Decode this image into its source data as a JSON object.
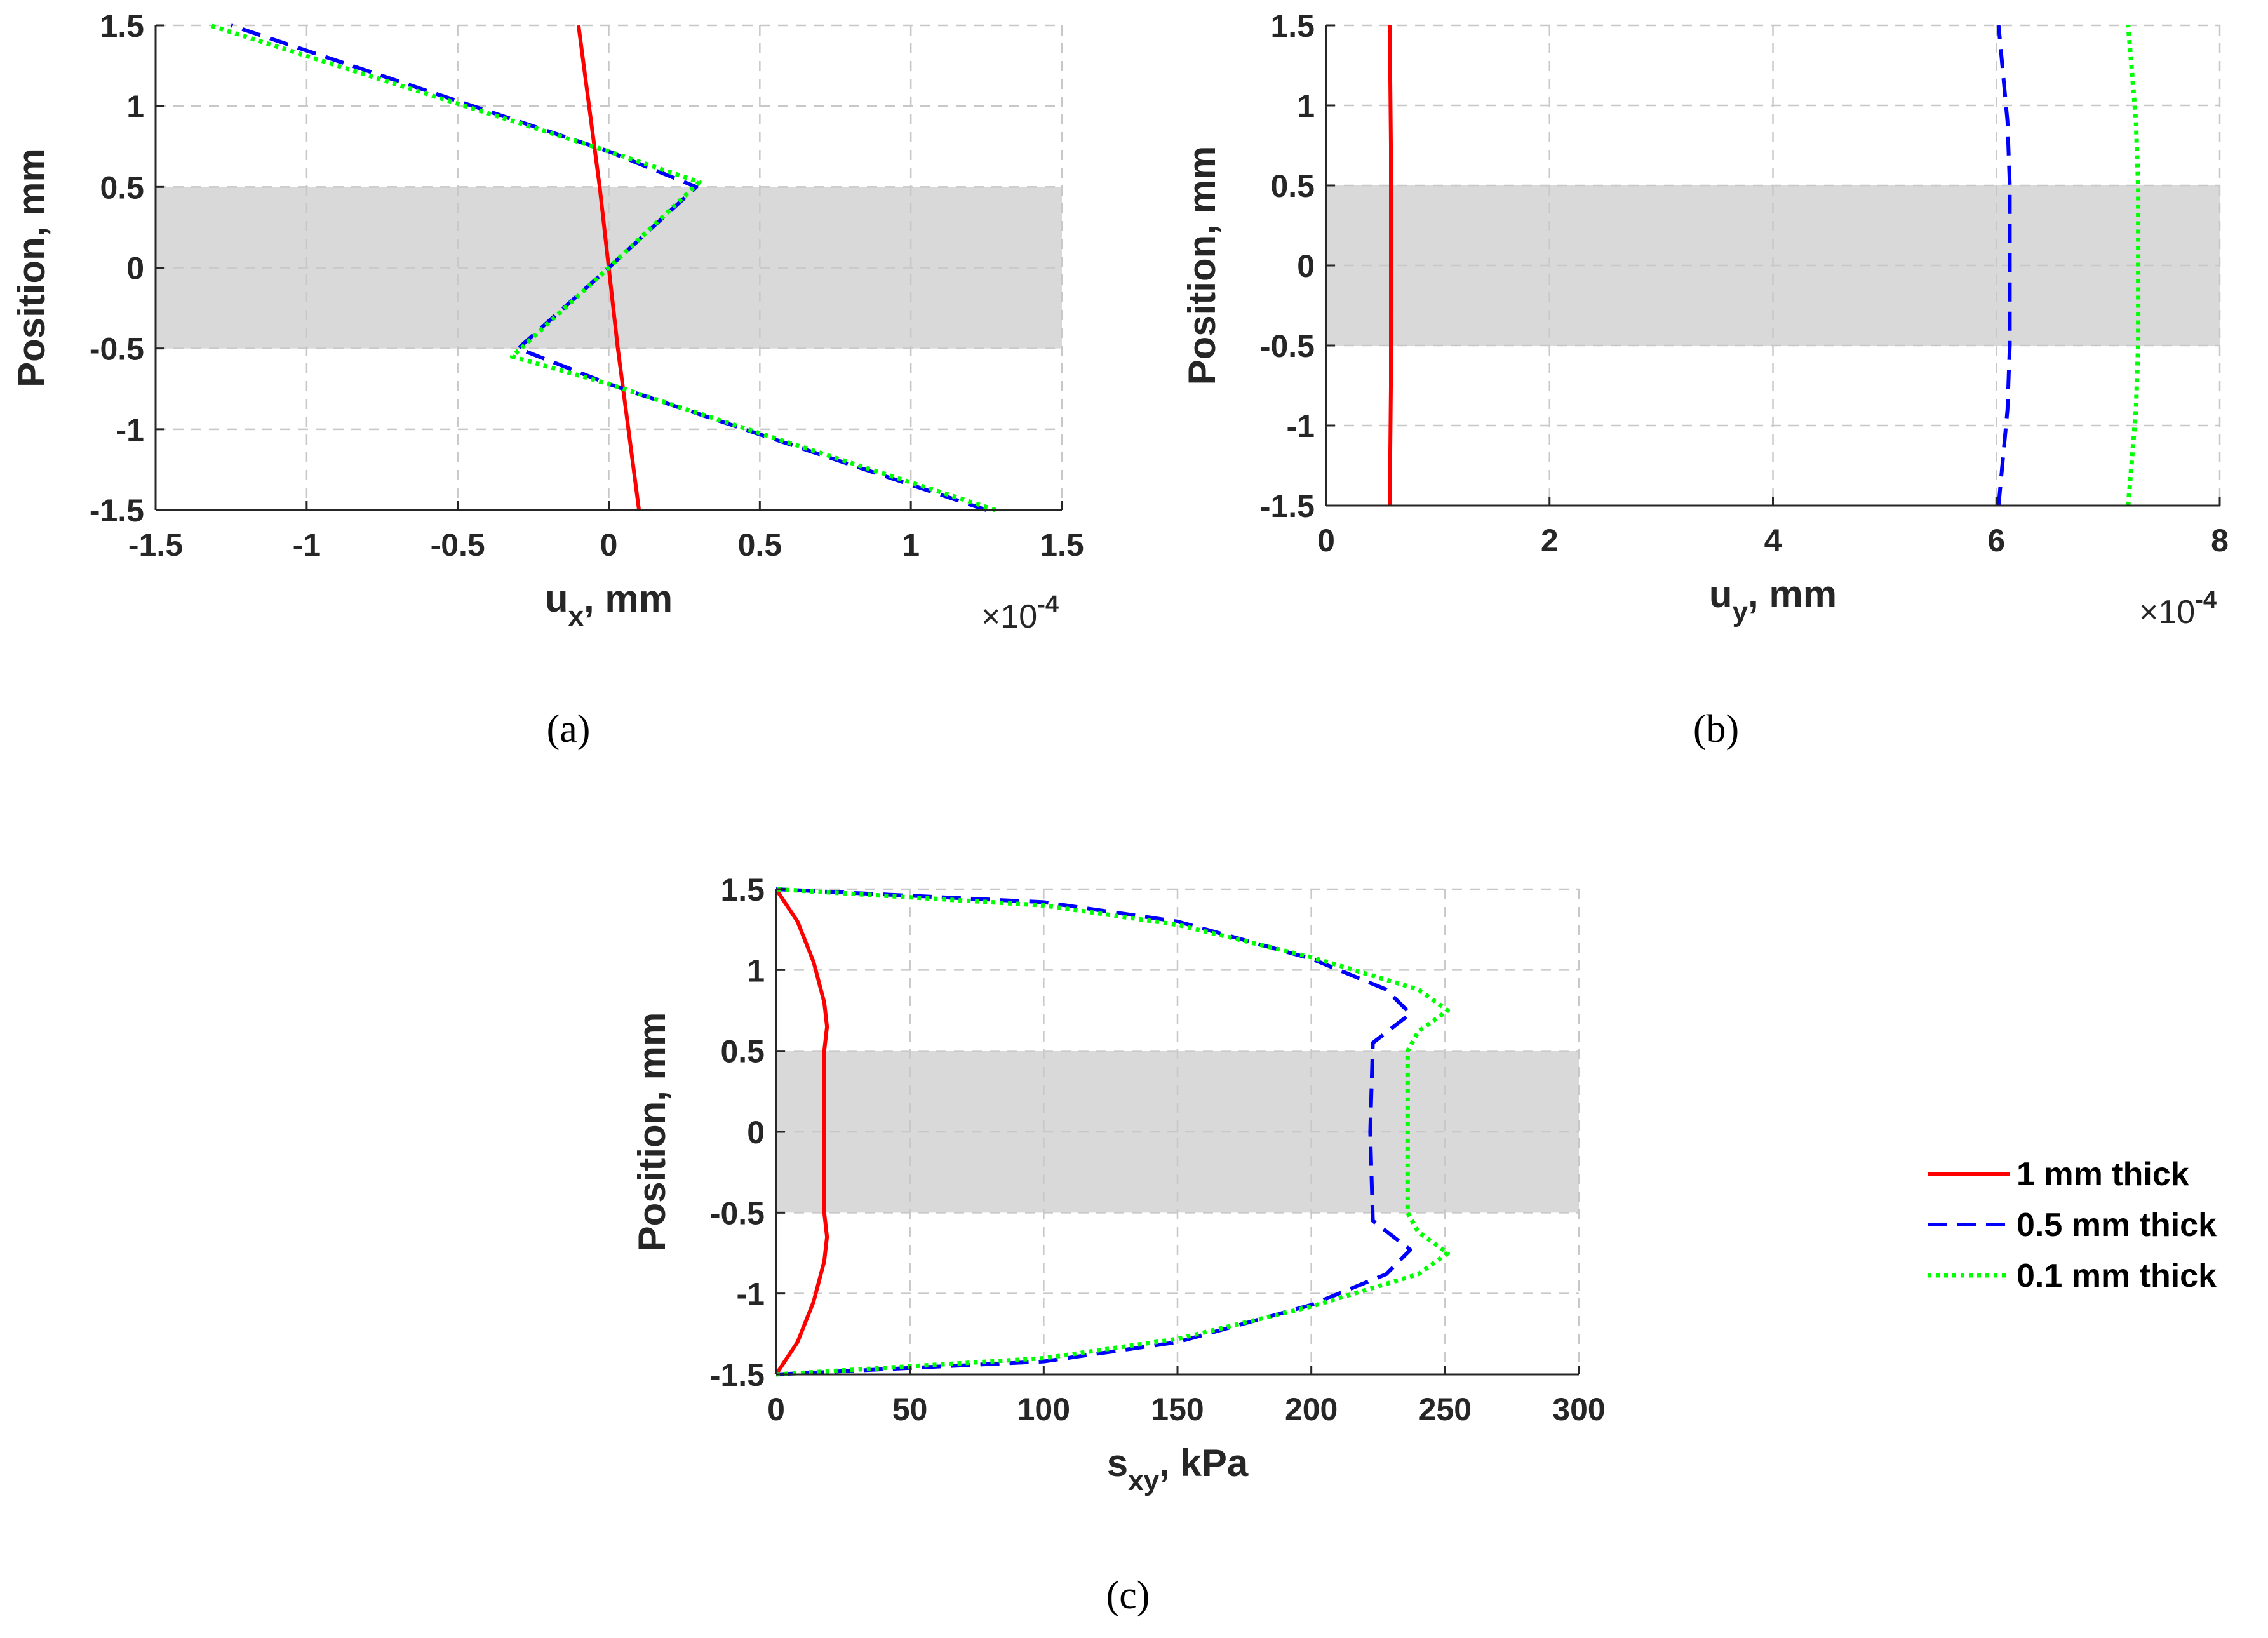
{
  "colors": {
    "series_1mm": "#ff0000",
    "series_05mm": "#0000ff",
    "series_01mm": "#00ff00",
    "band": "#d9d9d9"
  },
  "legend": {
    "entries": [
      "1 mm thick",
      "0.5 mm thick",
      "0.1 mm thick"
    ]
  },
  "chart_data": [
    {
      "id": "a",
      "type": "line",
      "caption": "(a)",
      "xlabel_main": "u",
      "xlabel_sub": "x",
      "xlabel_rest": ", mm",
      "ylabel": "Position, mm",
      "multiplier_text": "×10",
      "multiplier_exp": "-4",
      "xlim": [
        -1.5,
        1.5
      ],
      "ylim": [
        -1.5,
        1.5
      ],
      "xticks": [
        -1.5,
        -1,
        -0.5,
        0,
        0.5,
        1,
        1.5
      ],
      "xtick_labels": [
        "-1.5",
        "-1",
        "-0.5",
        "0",
        "0.5",
        "1",
        "1.5"
      ],
      "yticks": [
        -1.5,
        -1,
        -0.5,
        0,
        0.5,
        1,
        1.5
      ],
      "ytick_labels": [
        "-1.5",
        "-1",
        "-0.5",
        "0",
        "0.5",
        "1",
        "1.5"
      ],
      "shaded_band_y": [
        -0.5,
        0.5
      ],
      "series": [
        {
          "name": "1 mm thick",
          "style": "solid",
          "x": [
            0.1,
            0.03,
            0,
            -0.03,
            -0.1
          ],
          "y": [
            -1.5,
            -0.5,
            0,
            0.5,
            1.5
          ]
        },
        {
          "name": "0.5 mm thick",
          "style": "dashed",
          "x": [
            1.25,
            0,
            -0.3,
            0,
            0.29,
            0,
            -1.25
          ],
          "y": [
            -1.5,
            -0.72,
            -0.5,
            0,
            0.5,
            0.72,
            1.5
          ]
        },
        {
          "name": "0.1 mm thick",
          "style": "dotted",
          "x": [
            1.28,
            0,
            -0.32,
            0,
            0.3,
            0,
            -1.32
          ],
          "y": [
            -1.5,
            -0.72,
            -0.55,
            0,
            0.53,
            0.72,
            1.5
          ]
        }
      ]
    },
    {
      "id": "b",
      "type": "line",
      "caption": "(b)",
      "xlabel_main": "u",
      "xlabel_sub": "y",
      "xlabel_rest": ", mm",
      "ylabel": "Position, mm",
      "multiplier_text": "×10",
      "multiplier_exp": "-4",
      "xlim": [
        0,
        8
      ],
      "ylim": [
        -1.5,
        1.5
      ],
      "xticks": [
        0,
        2,
        4,
        6,
        8
      ],
      "xtick_labels": [
        "0",
        "2",
        "4",
        "6",
        "8"
      ],
      "yticks": [
        -1.5,
        -1,
        -0.5,
        0,
        0.5,
        1,
        1.5
      ],
      "ytick_labels": [
        "-1.5",
        "-1",
        "-0.5",
        "0",
        "0.5",
        "1",
        "1.5"
      ],
      "shaded_band_y": [
        -0.5,
        0.5
      ],
      "series": [
        {
          "name": "1 mm thick",
          "style": "solid",
          "x": [
            0.57,
            0.58,
            0.58,
            0.58,
            0.57
          ],
          "y": [
            -1.5,
            -0.75,
            0,
            0.75,
            1.5
          ]
        },
        {
          "name": "0.5 mm thick",
          "style": "dashed",
          "x": [
            6.02,
            6.1,
            6.12,
            6.12,
            6.12,
            6.1,
            6.02
          ],
          "y": [
            -1.5,
            -0.9,
            -0.5,
            0,
            0.5,
            0.9,
            1.5
          ]
        },
        {
          "name": "0.1 mm thick",
          "style": "dotted",
          "x": [
            7.18,
            7.25,
            7.27,
            7.27,
            7.27,
            7.25,
            7.18
          ],
          "y": [
            -1.5,
            -0.9,
            -0.5,
            0,
            0.5,
            0.9,
            1.5
          ]
        }
      ]
    },
    {
      "id": "c",
      "type": "line",
      "caption": "(c)",
      "xlabel_main": "s",
      "xlabel_sub": "xy",
      "xlabel_rest": ", kPa",
      "ylabel": "Position, mm",
      "xlim": [
        0,
        300
      ],
      "ylim": [
        -1.5,
        1.5
      ],
      "xticks": [
        0,
        50,
        100,
        150,
        200,
        250,
        300
      ],
      "xtick_labels": [
        "0",
        "50",
        "100",
        "150",
        "200",
        "250",
        "300"
      ],
      "yticks": [
        -1.5,
        -1,
        -0.5,
        0,
        0.5,
        1,
        1.5
      ],
      "ytick_labels": [
        "-1.5",
        "-1",
        "-0.5",
        "0",
        "0.5",
        "1",
        "1.5"
      ],
      "shaded_band_y": [
        -0.5,
        0.5
      ],
      "series": [
        {
          "name": "1 mm thick",
          "style": "solid",
          "x": [
            0,
            8,
            14,
            18,
            19,
            18,
            18,
            18,
            19,
            18,
            14,
            8,
            0
          ],
          "y": [
            -1.5,
            -1.3,
            -1.05,
            -0.8,
            -0.65,
            -0.5,
            0,
            0.5,
            0.65,
            0.8,
            1.05,
            1.3,
            1.5
          ]
        },
        {
          "name": "0.5 mm thick",
          "style": "dashed",
          "x": [
            0,
            100,
            150,
            200,
            228,
            237,
            223,
            222,
            223,
            237,
            228,
            200,
            150,
            100,
            0
          ],
          "y": [
            -1.5,
            -1.42,
            -1.3,
            -1.07,
            -0.88,
            -0.73,
            -0.55,
            0,
            0.55,
            0.73,
            0.88,
            1.07,
            1.3,
            1.42,
            1.5
          ]
        },
        {
          "name": "0.1 mm thick",
          "style": "dotted",
          "x": [
            0,
            100,
            150,
            200,
            240,
            251,
            240,
            236,
            236,
            236,
            240,
            251,
            240,
            200,
            150,
            100,
            0
          ],
          "y": [
            -1.5,
            -1.4,
            -1.28,
            -1.08,
            -0.88,
            -0.75,
            -0.62,
            -0.5,
            0,
            0.5,
            0.62,
            0.75,
            0.88,
            1.08,
            1.28,
            1.4,
            1.5
          ]
        }
      ]
    }
  ]
}
